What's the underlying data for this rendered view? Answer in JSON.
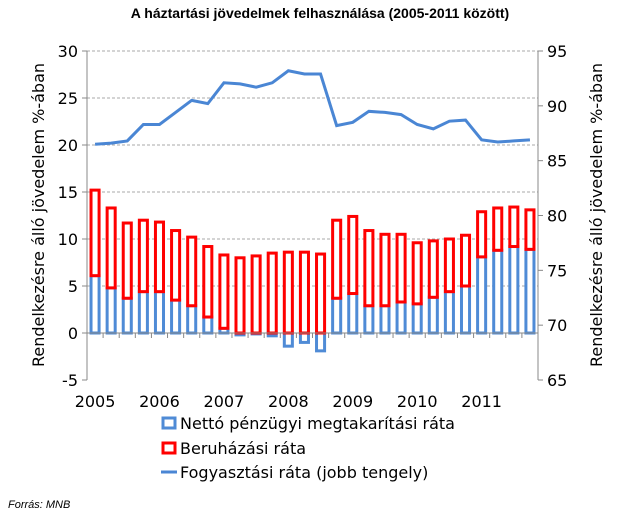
{
  "chart_data": {
    "type": "bar",
    "stacked": true,
    "title": "A háztartási jövedelmek felhasználása (2005-2011 között)",
    "ylabel": "Rendelkezésre álló jövedelem %-ában",
    "y2label": "Rendelkezésre álló jövedelem %-ában",
    "ylim": [
      -5,
      30
    ],
    "y2lim": [
      65,
      95
    ],
    "yticks": [
      "-5",
      "0",
      "5",
      "10",
      "15",
      "20",
      "25",
      "30"
    ],
    "y2ticks": [
      "65",
      "70",
      "75",
      "80",
      "85",
      "90",
      "95"
    ],
    "xtick_labels": [
      "2005",
      "2006",
      "2007",
      "2008",
      "2009",
      "2010",
      "2011"
    ],
    "grid": true,
    "legend": "bottom",
    "series": [
      {
        "name": "Nettó pénzügyi megtakarítási ráta",
        "type": "bar",
        "axis": "left",
        "color": "#4F8BD6",
        "values": [
          6.1,
          4.8,
          3.7,
          4.4,
          4.4,
          3.5,
          2.9,
          1.7,
          0.5,
          -0.2,
          -0.1,
          -0.3,
          -1.4,
          -1.0,
          -1.9,
          3.7,
          4.2,
          2.9,
          2.9,
          3.3,
          3.1,
          3.8,
          4.4,
          5.0,
          8.1,
          8.8,
          9.2,
          8.9
        ]
      },
      {
        "name": "Beruházási ráta",
        "type": "bar",
        "axis": "left",
        "color": "#FF0000",
        "values": [
          9.1,
          8.5,
          8.0,
          7.6,
          7.4,
          7.4,
          7.3,
          7.5,
          7.8,
          8.0,
          8.2,
          8.5,
          8.6,
          8.6,
          8.4,
          8.3,
          8.2,
          8.0,
          7.6,
          7.2,
          6.5,
          6.0,
          5.6,
          5.4,
          4.8,
          4.5,
          4.2,
          4.2
        ]
      },
      {
        "name": "Fogyasztási ráta (jobb tengely)",
        "type": "line",
        "axis": "right",
        "color": "#4A86D4",
        "values": [
          86.5,
          86.6,
          86.8,
          88.3,
          88.3,
          89.4,
          90.5,
          90.2,
          92.1,
          92.0,
          91.7,
          92.1,
          93.2,
          92.9,
          92.9,
          88.2,
          88.5,
          89.5,
          89.4,
          89.2,
          88.3,
          87.9,
          88.6,
          88.7,
          86.9,
          86.7,
          86.8,
          86.9
        ]
      }
    ]
  },
  "footer": {
    "source": "Forrás: MNB"
  }
}
